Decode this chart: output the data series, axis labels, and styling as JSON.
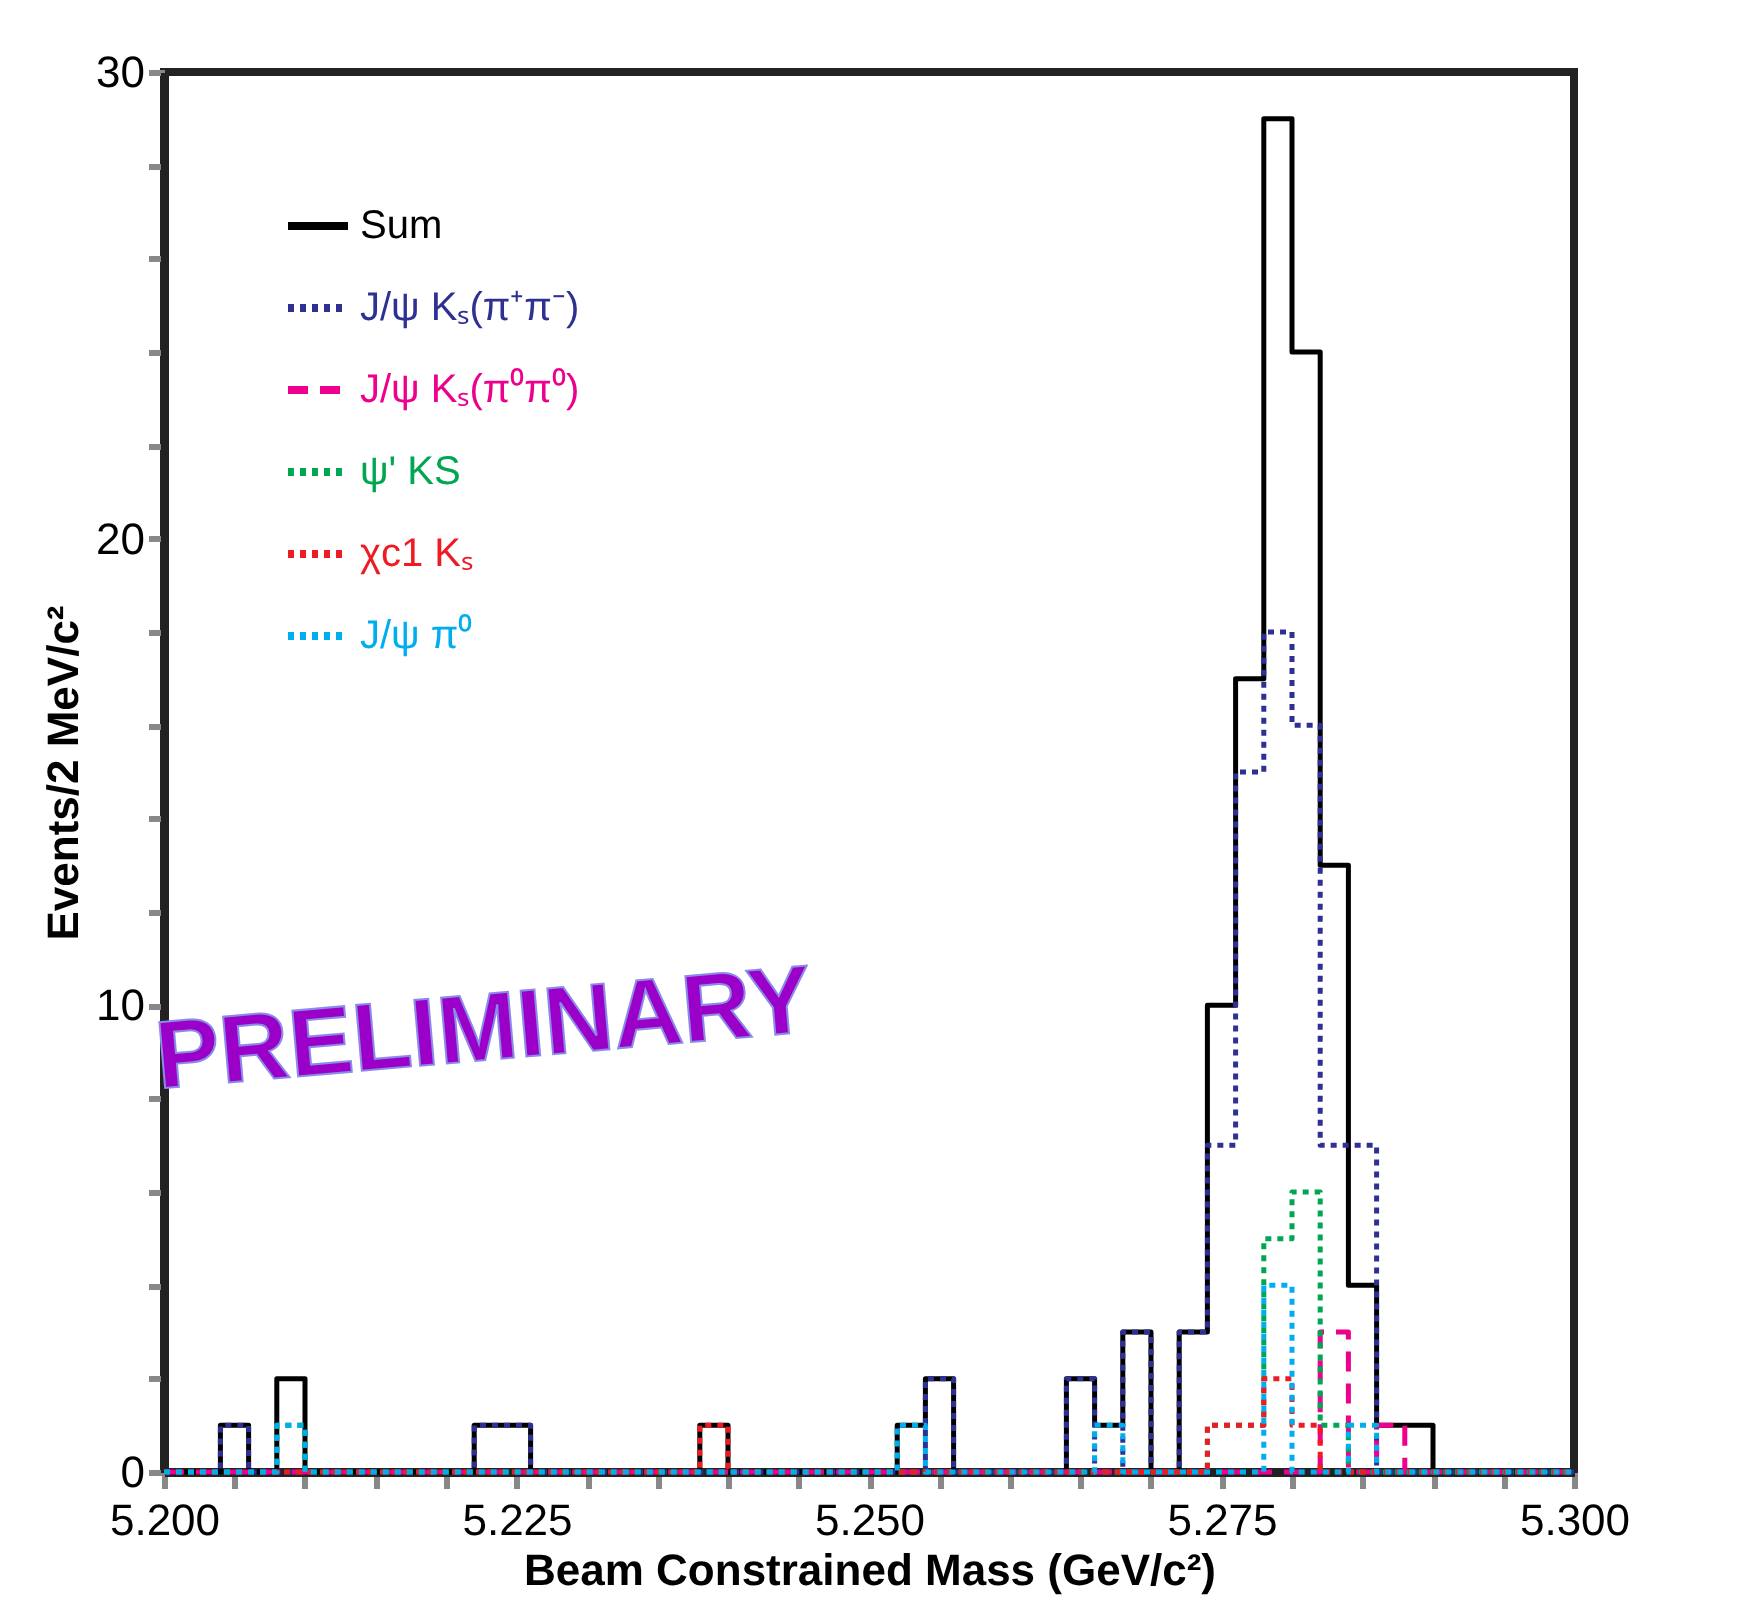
{
  "chart_data": {
    "type": "histogram",
    "xlabel": "Beam Constrained Mass (GeV/c²)",
    "ylabel": "Events/2 MeV/c²",
    "bins": [
      5.2,
      5.202,
      5.204,
      5.206,
      5.208,
      5.21,
      5.212,
      5.214,
      5.216,
      5.218,
      5.22,
      5.222,
      5.224,
      5.226,
      5.228,
      5.23,
      5.232,
      5.234,
      5.236,
      5.238,
      5.24,
      5.242,
      5.244,
      5.246,
      5.248,
      5.25,
      5.252,
      5.254,
      5.256,
      5.258,
      5.26,
      5.262,
      5.264,
      5.266,
      5.268,
      5.27,
      5.272,
      5.274,
      5.276,
      5.278,
      5.28,
      5.282,
      5.284,
      5.286,
      5.288,
      5.29,
      5.292,
      5.294,
      5.296,
      5.298,
      5.3
    ],
    "series": [
      {
        "name": "Sum",
        "color": "#000000",
        "line_style": "solid",
        "values": [
          0,
          0,
          1,
          0,
          2,
          0,
          0,
          0,
          0,
          0,
          0,
          1,
          1,
          0,
          0,
          0,
          0,
          0,
          0,
          1,
          0,
          0,
          0,
          0,
          0,
          0,
          1,
          2,
          0,
          0,
          0,
          0,
          2,
          1,
          3,
          0,
          3,
          10,
          17,
          29,
          24,
          13,
          4,
          1,
          1,
          0,
          0,
          0,
          0,
          0
        ]
      },
      {
        "name": "J/ψ Kₛ(π⁺π⁻)",
        "color": "#2e3192",
        "line_style": "dotted",
        "values": [
          0,
          0,
          1,
          0,
          0,
          0,
          0,
          0,
          0,
          0,
          0,
          1,
          1,
          0,
          0,
          0,
          0,
          0,
          0,
          0,
          0,
          0,
          0,
          0,
          0,
          0,
          0,
          2,
          0,
          0,
          0,
          0,
          2,
          0,
          3,
          0,
          3,
          7,
          15,
          18,
          16,
          7,
          7,
          0,
          0,
          0,
          0,
          0,
          0,
          0
        ]
      },
      {
        "name": "J/ψ Kₛ(π⁰π⁰)",
        "color": "#ec008c",
        "line_style": "dashed",
        "values": [
          0,
          0,
          0,
          0,
          0,
          0,
          0,
          0,
          0,
          0,
          0,
          0,
          0,
          0,
          0,
          0,
          0,
          0,
          0,
          0,
          0,
          0,
          0,
          0,
          0,
          0,
          0,
          0,
          0,
          0,
          0,
          0,
          0,
          0,
          0,
          0,
          0,
          0,
          0,
          0,
          0,
          3,
          0,
          1,
          0,
          0,
          0,
          0,
          0,
          0
        ]
      },
      {
        "name": "ψ' KS",
        "color": "#00a651",
        "line_style": "dotted",
        "values": [
          0,
          0,
          0,
          0,
          1,
          0,
          0,
          0,
          0,
          0,
          0,
          0,
          0,
          0,
          0,
          0,
          0,
          0,
          0,
          0,
          0,
          0,
          0,
          0,
          0,
          0,
          0,
          0,
          0,
          0,
          0,
          0,
          0,
          0,
          0,
          0,
          0,
          1,
          1,
          5,
          6,
          1,
          0,
          0,
          0,
          0,
          0,
          0,
          0,
          0
        ]
      },
      {
        "name": "χc1 Kₛ",
        "color": "#ed1c24",
        "line_style": "dotted",
        "values": [
          0,
          0,
          0,
          0,
          0,
          0,
          0,
          0,
          0,
          0,
          0,
          0,
          0,
          0,
          0,
          0,
          0,
          0,
          0,
          1,
          0,
          0,
          0,
          0,
          0,
          0,
          0,
          0,
          0,
          0,
          0,
          0,
          0,
          0,
          0,
          0,
          0,
          1,
          1,
          2,
          1,
          0,
          0,
          0,
          0,
          0,
          0,
          0,
          0,
          0
        ]
      },
      {
        "name": "J/ψ π⁰",
        "color": "#00aeef",
        "line_style": "dotted",
        "values": [
          0,
          0,
          0,
          0,
          1,
          0,
          0,
          0,
          0,
          0,
          0,
          0,
          0,
          0,
          0,
          0,
          0,
          0,
          0,
          0,
          0,
          0,
          0,
          0,
          0,
          0,
          1,
          0,
          0,
          0,
          0,
          0,
          0,
          1,
          0,
          0,
          0,
          0,
          0,
          4,
          0,
          0,
          1,
          0,
          0,
          0,
          0,
          0,
          0,
          0
        ]
      }
    ],
    "xlim": [
      5.2,
      5.3
    ],
    "xticks": [
      {
        "value": 5.2,
        "label": "5.200"
      },
      {
        "value": 5.205,
        "label": null
      },
      {
        "value": 5.21,
        "label": null
      },
      {
        "value": 5.215,
        "label": null
      },
      {
        "value": 5.22,
        "label": null
      },
      {
        "value": 5.225,
        "label": "5.225"
      },
      {
        "value": 5.23,
        "label": null
      },
      {
        "value": 5.235,
        "label": null
      },
      {
        "value": 5.24,
        "label": null
      },
      {
        "value": 5.245,
        "label": null
      },
      {
        "value": 5.25,
        "label": "5.250"
      },
      {
        "value": 5.255,
        "label": null
      },
      {
        "value": 5.26,
        "label": null
      },
      {
        "value": 5.265,
        "label": null
      },
      {
        "value": 5.27,
        "label": null
      },
      {
        "value": 5.275,
        "label": "5.275"
      },
      {
        "value": 5.28,
        "label": null
      },
      {
        "value": 5.285,
        "label": null
      },
      {
        "value": 5.29,
        "label": null
      },
      {
        "value": 5.295,
        "label": null
      },
      {
        "value": 5.3,
        "label": "5.300"
      }
    ],
    "ylim": [
      0,
      30
    ],
    "yticks": [
      0,
      {
        "value": 2,
        "label": null
      },
      {
        "value": 4,
        "label": null
      },
      {
        "value": 6,
        "label": null
      },
      {
        "value": 8,
        "label": null
      },
      10,
      {
        "value": 12,
        "label": null
      },
      {
        "value": 14,
        "label": null
      },
      {
        "value": 16,
        "label": null
      },
      {
        "value": 18,
        "label": null
      },
      20,
      {
        "value": 22,
        "label": null
      },
      {
        "value": 24,
        "label": null
      },
      {
        "value": 26,
        "label": null
      },
      {
        "value": 28,
        "label": null
      },
      30
    ],
    "grid": false,
    "legend": "top left",
    "annotations": [
      "PRELIMINARY"
    ]
  }
}
